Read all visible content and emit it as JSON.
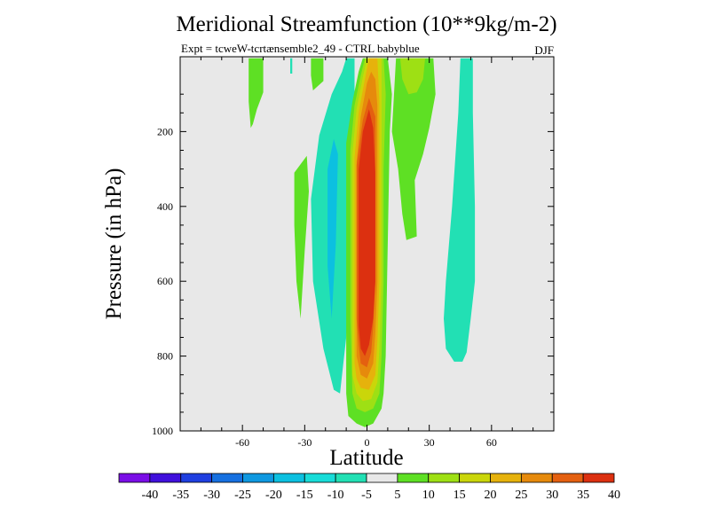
{
  "chart_data": {
    "type": "contour",
    "title": "Meridional Streamfunction (10**9kg/m-2)",
    "subtitle": "Expt = tcweW-tcrtænsemble2_49 - CTRL babyblue",
    "season": "DJF",
    "xlabel": "Latitude",
    "ylabel": "Pressure (in hPa)",
    "xlim": [
      -90,
      90
    ],
    "ylim": [
      0,
      1000
    ],
    "y_inverted": true,
    "x_ticks": [
      -60,
      -30,
      0,
      30,
      60
    ],
    "x_tick_labels": [
      "-60",
      "-30",
      "0",
      "30",
      "60"
    ],
    "y_ticks": [
      200,
      400,
      600,
      800,
      1000
    ],
    "y_tick_labels": [
      "200",
      "400",
      "600",
      "800",
      "1000"
    ],
    "background_color": "#e8e8e8",
    "colorbar": {
      "levels": [
        -40,
        -35,
        -30,
        -25,
        -20,
        -15,
        -10,
        -5,
        5,
        10,
        15,
        20,
        25,
        30,
        35,
        40
      ],
      "labels": [
        "-40",
        "-35",
        "-30",
        "-25",
        "-20",
        "-15",
        "-10",
        "-5",
        "5",
        "10",
        "15",
        "20",
        "25",
        "30",
        "35",
        "40"
      ],
      "colors": [
        "#7a0ee6",
        "#4010dc",
        "#1f3fe0",
        "#1670e0",
        "#0f98e0",
        "#0cc0e0",
        "#18dcd8",
        "#22e0b4",
        "#e8e8e8",
        "#5ee024",
        "#9ee014",
        "#cad60a",
        "#e6b20c",
        "#e68a0c",
        "#e46010",
        "#dc3010"
      ]
    },
    "regions": [
      {
        "name": "region-southern-high-streak",
        "level": 10,
        "color": "#5ee024",
        "points": [
          [
            -57,
            4
          ],
          [
            -50,
            4
          ],
          [
            -50,
            95
          ],
          [
            -53,
            140
          ],
          [
            -55,
            180
          ],
          [
            -56,
            190
          ],
          [
            -57,
            120
          ]
        ]
      },
      {
        "name": "region-thin-cyan-tick",
        "level": -10,
        "color": "#22e0b4",
        "points": [
          [
            -37,
            4
          ],
          [
            -36,
            4
          ],
          [
            -36,
            45
          ],
          [
            -37,
            45
          ]
        ]
      },
      {
        "name": "region-southern-green-tower",
        "level": 10,
        "color": "#5ee024",
        "points": [
          [
            -27,
            4
          ],
          [
            -21,
            4
          ],
          [
            -21,
            65
          ],
          [
            -26,
            90
          ],
          [
            -27,
            50
          ]
        ]
      },
      {
        "name": "region-left-green-lobe",
        "level": 10,
        "color": "#5ee024",
        "points": [
          [
            -35,
            310
          ],
          [
            -29,
            265
          ],
          [
            -28,
            360
          ],
          [
            -30,
            520
          ],
          [
            -32,
            700
          ],
          [
            -34,
            600
          ],
          [
            -35,
            450
          ]
        ]
      },
      {
        "name": "region-cyan-negative-cell",
        "level": -10,
        "color": "#22e0b4",
        "points": [
          [
            -27,
            380
          ],
          [
            -23,
            210
          ],
          [
            -17,
            100
          ],
          [
            -12,
            40
          ],
          [
            -10,
            4
          ],
          [
            -6,
            4
          ],
          [
            -6,
            250
          ],
          [
            -7,
            500
          ],
          [
            -10,
            750
          ],
          [
            -13,
            900
          ],
          [
            -16,
            890
          ],
          [
            -21,
            780
          ],
          [
            -26,
            600
          ]
        ]
      },
      {
        "name": "region-cyan-deeper-core",
        "level": -15,
        "color": "#0cc0e0",
        "points": [
          [
            -19,
            300
          ],
          [
            -16,
            220
          ],
          [
            -14,
            260
          ],
          [
            -15,
            500
          ],
          [
            -17,
            700
          ],
          [
            -19,
            560
          ]
        ]
      },
      {
        "name": "region-northern-green-tower",
        "level": 10,
        "color": "#5ee024",
        "points": [
          [
            14,
            4
          ],
          [
            32,
            4
          ],
          [
            33,
            100
          ],
          [
            30,
            190
          ],
          [
            27,
            260
          ],
          [
            23,
            330
          ],
          [
            24,
            480
          ],
          [
            19,
            490
          ],
          [
            17,
            420
          ],
          [
            15,
            300
          ],
          [
            12,
            200
          ]
        ]
      },
      {
        "name": "region-northern-yellow-core",
        "level": 15,
        "color": "#9ee014",
        "points": [
          [
            16,
            4
          ],
          [
            28,
            4
          ],
          [
            27,
            60
          ],
          [
            24,
            95
          ],
          [
            20,
            100
          ],
          [
            17,
            60
          ]
        ]
      },
      {
        "name": "region-northern-cyan-column",
        "level": -10,
        "color": "#22e0b4",
        "points": [
          [
            45,
            4
          ],
          [
            51,
            4
          ],
          [
            51,
            150
          ],
          [
            52,
            400
          ],
          [
            52,
            600
          ],
          [
            50,
            700
          ],
          [
            48,
            790
          ],
          [
            46,
            815
          ],
          [
            42,
            815
          ],
          [
            38,
            780
          ],
          [
            37,
            700
          ],
          [
            38,
            600
          ],
          [
            41,
            400
          ],
          [
            44,
            150
          ]
        ]
      },
      {
        "name": "region-hadley-cell-5",
        "level": 5,
        "color": "#5ee024",
        "points": [
          [
            -10,
            230
          ],
          [
            -7,
            120
          ],
          [
            -4,
            40
          ],
          [
            -2,
            4
          ],
          [
            10,
            4
          ],
          [
            12,
            100
          ],
          [
            11,
            200
          ],
          [
            10,
            500
          ],
          [
            9,
            800
          ],
          [
            8,
            900
          ],
          [
            7,
            940
          ],
          [
            3,
            980
          ],
          [
            -1,
            990
          ],
          [
            -5,
            980
          ],
          [
            -9,
            960
          ],
          [
            -10,
            900
          ],
          [
            -10,
            700
          ]
        ]
      },
      {
        "name": "region-hadley-cell-10",
        "level": 10,
        "color": "#9ee014",
        "points": [
          [
            -8,
            250
          ],
          [
            -6,
            130
          ],
          [
            -3,
            50
          ],
          [
            -1,
            4
          ],
          [
            8,
            4
          ],
          [
            9,
            100
          ],
          [
            8,
            300
          ],
          [
            8,
            600
          ],
          [
            7,
            800
          ],
          [
            6,
            900
          ],
          [
            3,
            940
          ],
          [
            -1,
            950
          ],
          [
            -5,
            940
          ],
          [
            -7,
            900
          ],
          [
            -8,
            700
          ]
        ]
      },
      {
        "name": "region-hadley-cell-15",
        "level": 15,
        "color": "#cad60a",
        "points": [
          [
            -7,
            260
          ],
          [
            -5,
            140
          ],
          [
            -2,
            55
          ],
          [
            0,
            4
          ],
          [
            7,
            4
          ],
          [
            7,
            110
          ],
          [
            7,
            300
          ],
          [
            7,
            600
          ],
          [
            6,
            780
          ],
          [
            5,
            870
          ],
          [
            2,
            915
          ],
          [
            -2,
            920
          ],
          [
            -5,
            900
          ],
          [
            -7,
            850
          ],
          [
            -7,
            700
          ]
        ]
      },
      {
        "name": "region-hadley-cell-20",
        "level": 20,
        "color": "#e6b20c",
        "points": [
          [
            -6,
            270
          ],
          [
            -4,
            150
          ],
          [
            -1,
            60
          ],
          [
            1,
            4
          ],
          [
            5,
            4
          ],
          [
            6,
            120
          ],
          [
            6,
            300
          ],
          [
            6,
            600
          ],
          [
            5,
            760
          ],
          [
            4,
            850
          ],
          [
            1,
            890
          ],
          [
            -3,
            885
          ],
          [
            -5,
            860
          ],
          [
            -6,
            820
          ],
          [
            -6,
            700
          ]
        ]
      },
      {
        "name": "region-hadley-cell-25",
        "level": 25,
        "color": "#e68a0c",
        "points": [
          [
            -5,
            280
          ],
          [
            -3,
            160
          ],
          [
            0,
            70
          ],
          [
            2,
            40
          ],
          [
            4,
            60
          ],
          [
            5,
            130
          ],
          [
            5,
            300
          ],
          [
            5,
            600
          ],
          [
            4,
            740
          ],
          [
            3,
            820
          ],
          [
            0,
            860
          ],
          [
            -3,
            850
          ],
          [
            -5,
            800
          ],
          [
            -5,
            700
          ]
        ]
      },
      {
        "name": "region-hadley-cell-30",
        "level": 30,
        "color": "#e46010",
        "points": [
          [
            -5,
            290
          ],
          [
            -2,
            170
          ],
          [
            1,
            110
          ],
          [
            4,
            160
          ],
          [
            4,
            300
          ],
          [
            4,
            600
          ],
          [
            3,
            720
          ],
          [
            2,
            790
          ],
          [
            0,
            830
          ],
          [
            -3,
            820
          ],
          [
            -4,
            770
          ],
          [
            -5,
            700
          ]
        ]
      },
      {
        "name": "region-hadley-cell-35",
        "level": 35,
        "color": "#dc3010",
        "points": [
          [
            -4,
            300
          ],
          [
            -2,
            200
          ],
          [
            1,
            140
          ],
          [
            3,
            190
          ],
          [
            4,
            310
          ],
          [
            4,
            600
          ],
          [
            3,
            700
          ],
          [
            1,
            770
          ],
          [
            -1,
            800
          ],
          [
            -3,
            780
          ],
          [
            -4,
            720
          ],
          [
            -4,
            600
          ]
        ]
      }
    ]
  }
}
